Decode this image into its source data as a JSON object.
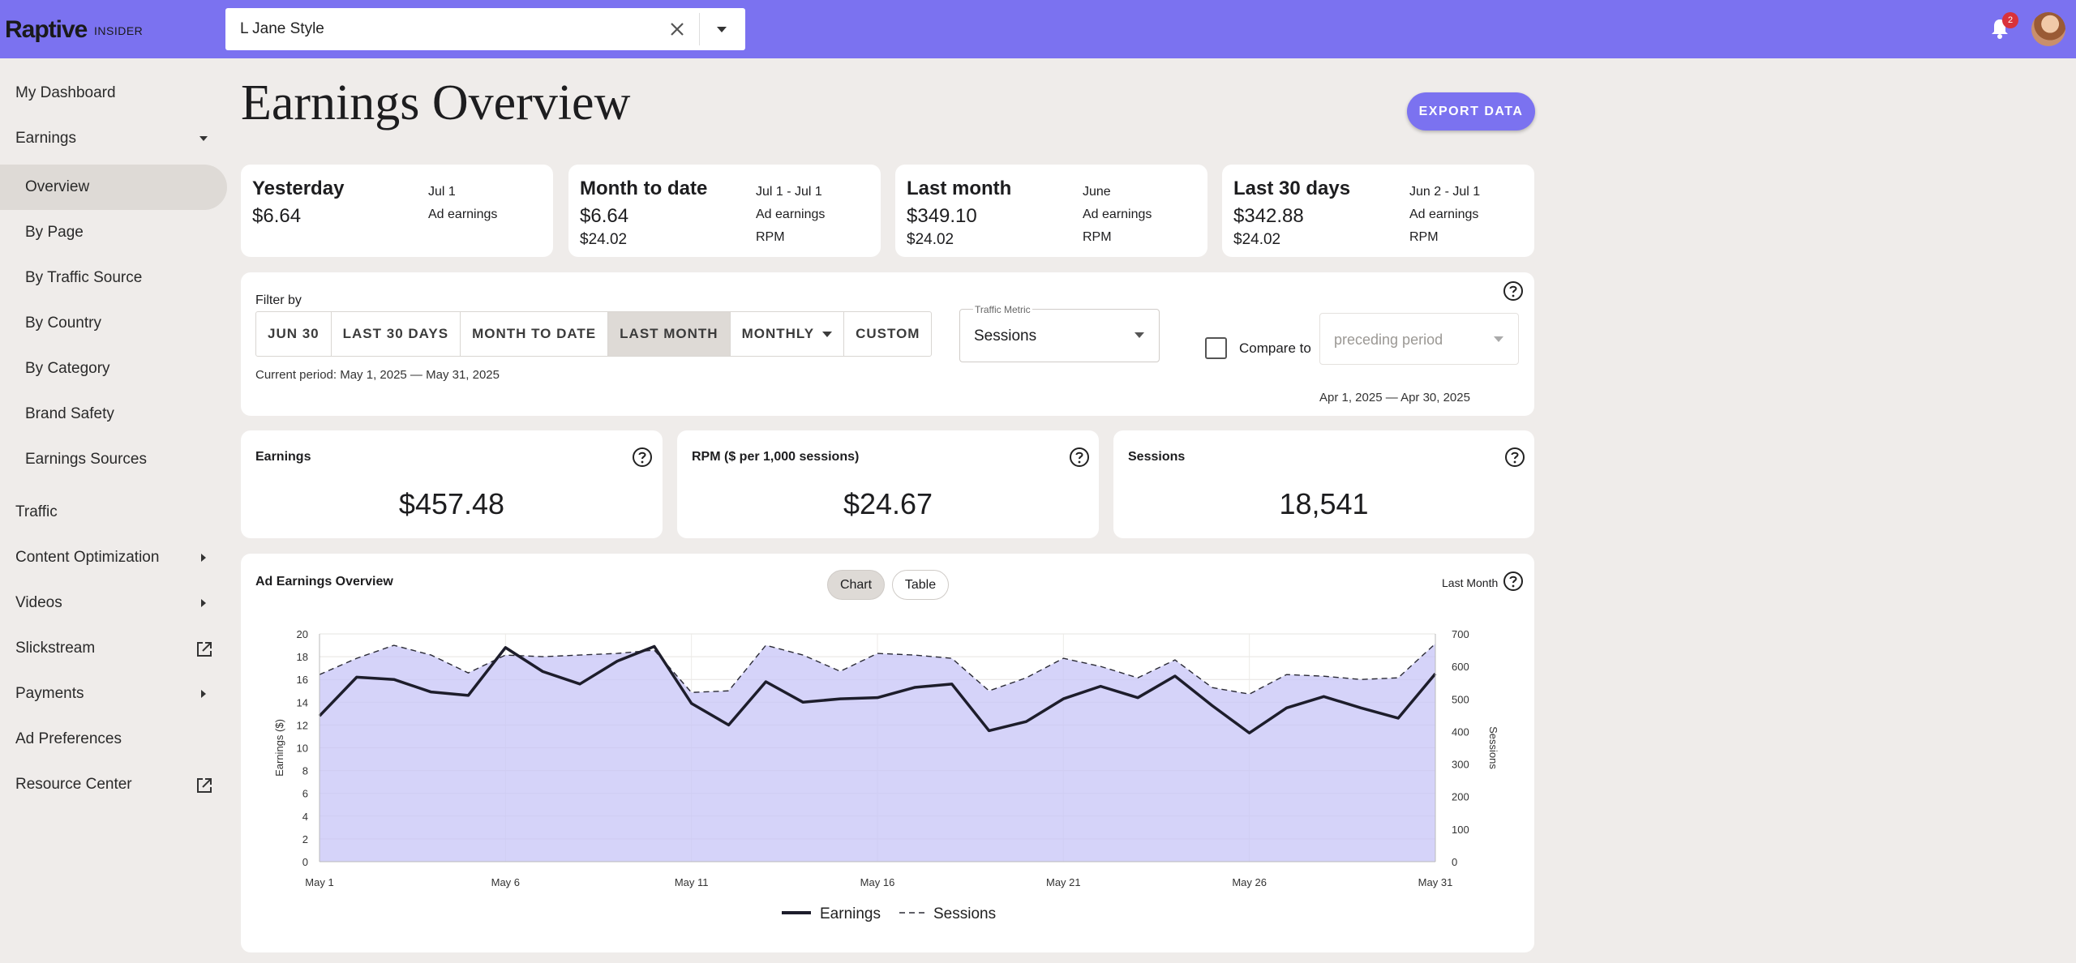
{
  "app": {
    "logo": "Raptive",
    "logo_sub": "INSIDER"
  },
  "site_select": {
    "value": "L Jane Style"
  },
  "notifications": {
    "count": "2"
  },
  "sidebar": {
    "items": [
      {
        "label": "My Dashboard"
      },
      {
        "label": "Earnings"
      },
      {
        "label": "Overview"
      },
      {
        "label": "By Page"
      },
      {
        "label": "By Traffic Source"
      },
      {
        "label": "By Country"
      },
      {
        "label": "By Category"
      },
      {
        "label": "Brand Safety"
      },
      {
        "label": "Earnings Sources"
      },
      {
        "label": "Traffic"
      },
      {
        "label": "Content Optimization"
      },
      {
        "label": "Videos"
      },
      {
        "label": "Slickstream"
      },
      {
        "label": "Payments"
      },
      {
        "label": "Ad Preferences"
      },
      {
        "label": "Resource Center"
      }
    ]
  },
  "page": {
    "title": "Earnings Overview",
    "export_label": "EXPORT DATA"
  },
  "summary": [
    {
      "title": "Yesterday",
      "value": "$6.64",
      "date": "Jul 1",
      "value_label": "Ad earnings"
    },
    {
      "title": "Month to date",
      "value": "$6.64",
      "rpm": "$24.02",
      "date": "Jul 1 - Jul 1",
      "value_label": "Ad earnings",
      "rpm_label": "RPM"
    },
    {
      "title": "Last month",
      "value": "$349.10",
      "rpm": "$24.02",
      "date": "June",
      "value_label": "Ad earnings",
      "rpm_label": "RPM"
    },
    {
      "title": "Last 30 days",
      "value": "$342.88",
      "rpm": "$24.02",
      "date": "Jun 2 - Jul 1",
      "value_label": "Ad earnings",
      "rpm_label": "RPM"
    }
  ],
  "filter": {
    "label": "Filter by",
    "options": [
      "JUN 30",
      "LAST 30 DAYS",
      "MONTH TO DATE",
      "LAST MONTH",
      "MONTHLY",
      "CUSTOM"
    ],
    "selected": "LAST MONTH",
    "current_period": "Current period: May 1, 2025 — May 31, 2025",
    "metric_legend": "Traffic Metric",
    "metric_value": "Sessions",
    "compare_label": "Compare to",
    "compare_placeholder": "preceding period",
    "compare_checked": false,
    "previous_period": "Apr 1, 2025 — Apr 30, 2025"
  },
  "metrics": [
    {
      "title": "Earnings",
      "value": "$457.48"
    },
    {
      "title": "RPM ($ per 1,000 sessions)",
      "value": "$24.67"
    },
    {
      "title": "Sessions",
      "value": "18,541"
    }
  ],
  "chart_panel": {
    "title": "Ad Earnings Overview",
    "tab_chart": "Chart",
    "tab_table": "Table",
    "active_tab": "Chart",
    "range": "Last Month"
  },
  "colors": {
    "accent": "#7b72f0",
    "area_fill": "#c7c4f7",
    "earnings_line": "#1d1d2b"
  },
  "chart_data": {
    "type": "area",
    "x": [
      "May 1",
      "May 2",
      "May 3",
      "May 4",
      "May 5",
      "May 6",
      "May 7",
      "May 8",
      "May 9",
      "May 10",
      "May 11",
      "May 12",
      "May 13",
      "May 14",
      "May 15",
      "May 16",
      "May 17",
      "May 18",
      "May 19",
      "May 20",
      "May 21",
      "May 22",
      "May 23",
      "May 24",
      "May 25",
      "May 26",
      "May 27",
      "May 28",
      "May 29",
      "May 30",
      "May 31"
    ],
    "xticks": [
      "May 1",
      "May 6",
      "May 11",
      "May 16",
      "May 21",
      "May 26",
      "May 31"
    ],
    "series": [
      {
        "name": "Earnings",
        "axis": "left",
        "style": "solid",
        "values": [
          12.8,
          16.2,
          16.0,
          14.9,
          14.6,
          18.8,
          16.7,
          15.6,
          17.6,
          18.9,
          13.9,
          12.0,
          15.8,
          14.0,
          14.3,
          14.4,
          15.3,
          15.6,
          11.5,
          12.3,
          14.3,
          15.4,
          14.4,
          16.3,
          13.7,
          11.3,
          13.5,
          14.5,
          13.5,
          12.6,
          16.5
        ]
      },
      {
        "name": "Sessions",
        "axis": "right",
        "style": "dashed",
        "values": [
          575,
          625,
          665,
          635,
          580,
          635,
          630,
          635,
          640,
          650,
          520,
          525,
          665,
          635,
          585,
          640,
          635,
          625,
          525,
          565,
          625,
          600,
          565,
          620,
          535,
          515,
          575,
          570,
          560,
          565,
          670
        ]
      }
    ],
    "ylabel": "Earnings ($)",
    "y2label": "Sessions",
    "ylim": [
      0,
      20
    ],
    "yticks": [
      0,
      2,
      4,
      6,
      8,
      10,
      12,
      14,
      16,
      18,
      20
    ],
    "y2lim": [
      0,
      700
    ],
    "y2ticks": [
      0,
      100,
      200,
      300,
      400,
      500,
      600,
      700
    ],
    "grid": true,
    "legend": "bottom-center"
  }
}
